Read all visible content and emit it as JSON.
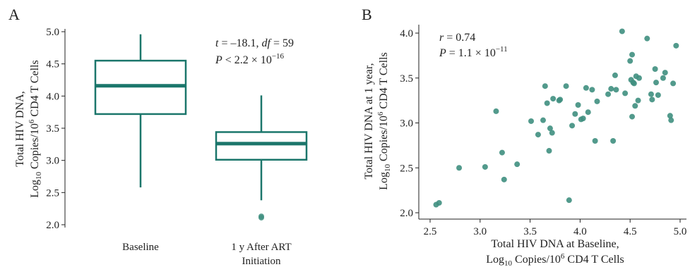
{
  "colors": {
    "accent": "#1b766b",
    "point": "#3f8f80"
  },
  "chart_data": [
    {
      "panel": "A",
      "type": "box",
      "categories": [
        "Baseline",
        "1 y After ART Initiation"
      ],
      "category_lines": [
        [
          "Baseline"
        ],
        [
          "1 y After ART",
          "Initiation"
        ]
      ],
      "boxes": [
        {
          "whisker_low": 2.58,
          "q1": 3.72,
          "median": 4.16,
          "q3": 4.55,
          "whisker_high": 4.96,
          "outliers": []
        },
        {
          "whisker_low": 2.38,
          "q1": 3.01,
          "median": 3.26,
          "q3": 3.44,
          "whisker_high": 4.01,
          "outliers": [
            2.11,
            2.13
          ]
        }
      ],
      "ylabel": {
        "line1": "Total HIV DNA,",
        "line2_pre": "Log",
        "line2_sub": "10",
        "line2_mid": " Copies/10",
        "line2_sup": "6",
        "line2_post": " CD4 T Cells"
      },
      "ylim": [
        2.0,
        5.0
      ],
      "yticks": [
        "2.0",
        "2.5",
        "3.0",
        "3.5",
        "4.0",
        "4.5",
        "5.0"
      ],
      "annotation": {
        "line1": {
          "t": "t",
          "t_val": " = –18.1, ",
          "df": "df",
          "df_val": " = 59"
        },
        "line2": {
          "p": "P",
          "p_val": " < 2.2 × 10",
          "sup": "−16"
        }
      }
    },
    {
      "panel": "B",
      "type": "scatter",
      "xlabel": {
        "line1": "Total HIV DNA at Baseline,",
        "line2_pre": "Log",
        "line2_sub": "10",
        "line2_mid": " Copies/10",
        "line2_sup": "6",
        "line2_post": " CD4 T Cells"
      },
      "ylabel": {
        "line1": "Total HIV DNA at 1 year,",
        "line2_pre": "Log",
        "line2_sub": "10",
        "line2_mid": " Copies/10",
        "line2_sup": "6",
        "line2_post": " CD4 T Cells"
      },
      "xlim": [
        2.45,
        5.0
      ],
      "ylim": [
        2.0,
        4.05
      ],
      "xticks": [
        "2.5",
        "3.0",
        "3.5",
        "4.0",
        "4.5",
        "5.0"
      ],
      "yticks": [
        "2.0",
        "2.5",
        "3.0",
        "3.5",
        "4.0"
      ],
      "annotation": {
        "line1": {
          "r": "r",
          "r_val": " = 0.74"
        },
        "line2": {
          "p": "P",
          "p_val": " = 1.1 × 10",
          "sup": "−11"
        }
      },
      "points": [
        [
          2.56,
          2.09
        ],
        [
          2.59,
          2.11
        ],
        [
          2.79,
          2.5
        ],
        [
          3.05,
          2.51
        ],
        [
          3.16,
          3.13
        ],
        [
          3.22,
          2.67
        ],
        [
          3.24,
          2.37
        ],
        [
          3.37,
          2.54
        ],
        [
          3.51,
          3.02
        ],
        [
          3.58,
          2.87
        ],
        [
          3.63,
          3.03
        ],
        [
          3.65,
          3.41
        ],
        [
          3.67,
          3.22
        ],
        [
          3.69,
          2.69
        ],
        [
          3.7,
          2.94
        ],
        [
          3.72,
          2.89
        ],
        [
          3.73,
          3.27
        ],
        [
          3.79,
          3.25
        ],
        [
          3.8,
          3.26
        ],
        [
          3.86,
          3.41
        ],
        [
          3.89,
          2.14
        ],
        [
          3.92,
          2.97
        ],
        [
          3.95,
          3.1
        ],
        [
          3.98,
          3.2
        ],
        [
          4.01,
          3.04
        ],
        [
          4.03,
          3.05
        ],
        [
          4.06,
          3.39
        ],
        [
          4.08,
          3.12
        ],
        [
          4.12,
          3.37
        ],
        [
          4.15,
          2.8
        ],
        [
          4.17,
          3.24
        ],
        [
          4.28,
          3.32
        ],
        [
          4.31,
          3.38
        ],
        [
          4.33,
          2.8
        ],
        [
          4.35,
          3.53
        ],
        [
          4.36,
          3.37
        ],
        [
          4.42,
          4.02
        ],
        [
          4.45,
          3.33
        ],
        [
          4.5,
          3.69
        ],
        [
          4.51,
          3.48
        ],
        [
          4.52,
          3.76
        ],
        [
          4.52,
          3.07
        ],
        [
          4.53,
          3.45
        ],
        [
          4.54,
          3.44
        ],
        [
          4.55,
          3.19
        ],
        [
          4.56,
          3.52
        ],
        [
          4.58,
          3.25
        ],
        [
          4.59,
          3.5
        ],
        [
          4.67,
          3.94
        ],
        [
          4.71,
          3.32
        ],
        [
          4.72,
          3.26
        ],
        [
          4.75,
          3.6
        ],
        [
          4.76,
          3.45
        ],
        [
          4.78,
          3.31
        ],
        [
          4.83,
          3.5
        ],
        [
          4.85,
          3.56
        ],
        [
          4.9,
          3.08
        ],
        [
          4.91,
          3.03
        ],
        [
          4.93,
          3.44
        ],
        [
          4.96,
          3.86
        ]
      ]
    }
  ]
}
